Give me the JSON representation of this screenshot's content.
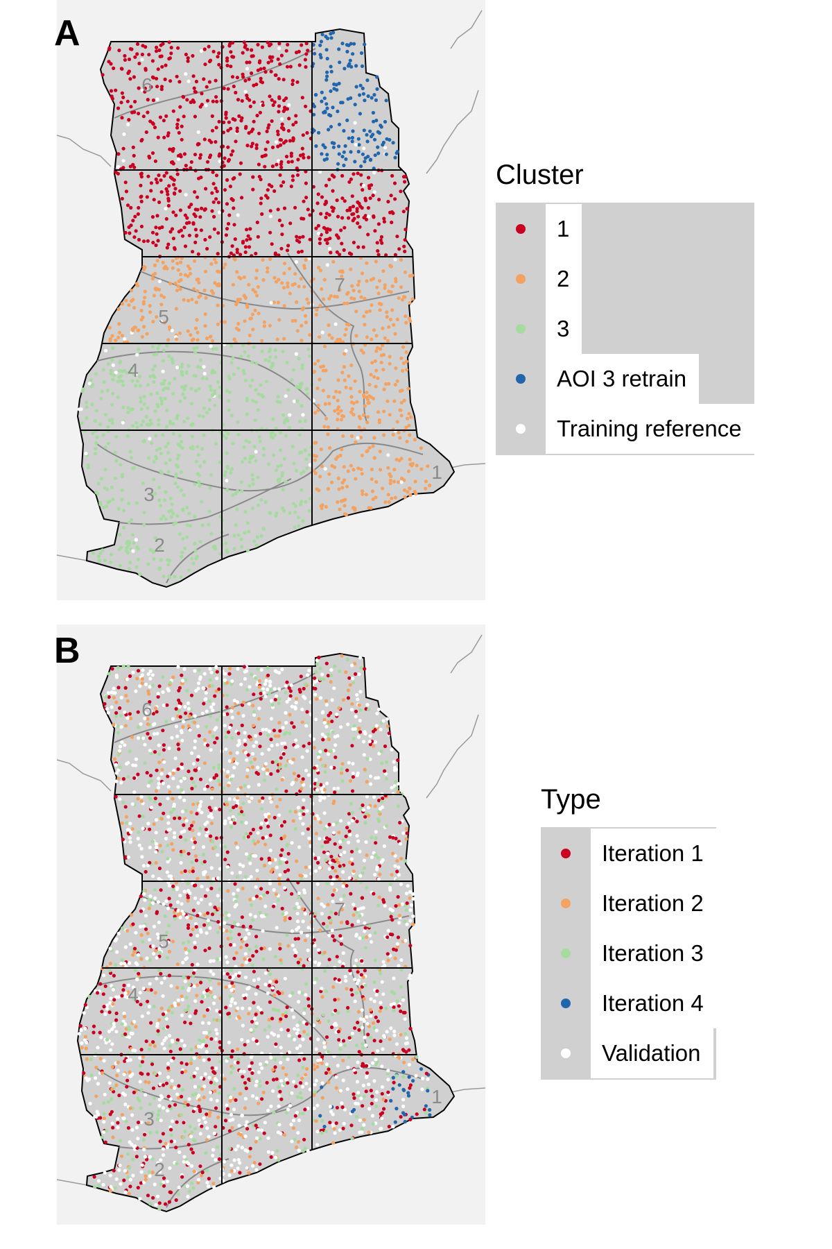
{
  "panels": [
    {
      "id": "A",
      "letter": "A",
      "legend": {
        "title": "Cluster",
        "items": [
          {
            "label": "1",
            "color": "#ca0020"
          },
          {
            "label": "2",
            "color": "#f4a261"
          },
          {
            "label": "3",
            "color": "#a6dba0"
          },
          {
            "label": "AOI 3 retrain",
            "color": "#2166ac"
          },
          {
            "label": "Training reference",
            "color": "#ffffff"
          }
        ]
      },
      "zone_labels": [
        "1",
        "2",
        "3",
        "4",
        "5",
        "6",
        "7"
      ]
    },
    {
      "id": "B",
      "letter": "B",
      "legend": {
        "title": "Type",
        "items": [
          {
            "label": "Iteration 1",
            "color": "#ca0020"
          },
          {
            "label": "Iteration 2",
            "color": "#f4a261"
          },
          {
            "label": "Iteration 3",
            "color": "#a6dba0"
          },
          {
            "label": "Iteration 4",
            "color": "#2166ac"
          },
          {
            "label": "Validation",
            "color": "#ffffff"
          }
        ]
      },
      "zone_labels": [
        "1",
        "2",
        "3",
        "4",
        "5",
        "6",
        "7"
      ]
    }
  ],
  "colors": {
    "background_land": "#f2f2f2",
    "country_fill": "#d0d0d0",
    "borders": "#999999",
    "grid": "#000000",
    "zone_lines": "#888888",
    "zone_label": "#8a8a8a"
  }
}
